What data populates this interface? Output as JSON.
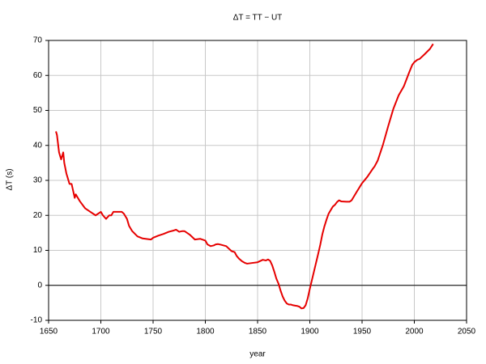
{
  "chart_data": {
    "type": "line",
    "title": "ΔT = TT − UT",
    "xlabel": "year",
    "ylabel": "ΔT (s)",
    "x": [
      1657,
      1658,
      1660,
      1662,
      1664,
      1665,
      1667,
      1670,
      1672,
      1675,
      1676,
      1678,
      1680,
      1685,
      1690,
      1695,
      1700,
      1702,
      1705,
      1708,
      1710,
      1712,
      1715,
      1720,
      1722,
      1725,
      1727,
      1730,
      1735,
      1740,
      1745,
      1748,
      1750,
      1755,
      1760,
      1765,
      1770,
      1772,
      1775,
      1778,
      1780,
      1785,
      1790,
      1795,
      1800,
      1802,
      1805,
      1808,
      1810,
      1812,
      1815,
      1820,
      1825,
      1828,
      1830,
      1832,
      1835,
      1838,
      1840,
      1845,
      1850,
      1855,
      1858,
      1860,
      1862,
      1864,
      1866,
      1868,
      1870,
      1872,
      1874,
      1876,
      1878,
      1880,
      1882,
      1884,
      1886,
      1888,
      1890,
      1892,
      1894,
      1896,
      1898,
      1900,
      1902,
      1904,
      1906,
      1908,
      1910,
      1912,
      1914,
      1916,
      1918,
      1920,
      1922,
      1924,
      1926,
      1928,
      1930,
      1935,
      1938,
      1940,
      1945,
      1950,
      1955,
      1960,
      1962,
      1965,
      1970,
      1975,
      1980,
      1985,
      1990,
      1995,
      1998,
      2000,
      2003,
      2005,
      2010,
      2015,
      2018
    ],
    "values": [
      44,
      43,
      38,
      36,
      38,
      35,
      32,
      29,
      29,
      25,
      26,
      25,
      24,
      22,
      21,
      20,
      21,
      20,
      19,
      20,
      20,
      21,
      21,
      21,
      20.5,
      19,
      17,
      15.5,
      14,
      13.4,
      13.2,
      13.1,
      13.6,
      14.2,
      14.7,
      15.3,
      15.7,
      15.9,
      15.3,
      15.5,
      15.5,
      14.5,
      13.1,
      13.3,
      12.8,
      11.7,
      11.2,
      11.4,
      11.7,
      11.8,
      11.6,
      11.2,
      9.8,
      9.5,
      8.4,
      7.7,
      6.9,
      6.4,
      6.2,
      6.4,
      6.6,
      7.3,
      7.1,
      7.4,
      7.0,
      5.7,
      3.9,
      1.9,
      0.5,
      -1.5,
      -3.2,
      -4.4,
      -5.2,
      -5.5,
      -5.5,
      -5.7,
      -5.8,
      -5.9,
      -6.1,
      -6.6,
      -6.5,
      -5.7,
      -3.7,
      -1.0,
      1.5,
      4.0,
      6.5,
      9.0,
      11.6,
      14.6,
      16.9,
      18.8,
      20.5,
      21.5,
      22.5,
      23.0,
      23.8,
      24.3,
      24.0,
      23.9,
      23.9,
      24.3,
      26.8,
      29.2,
      31.0,
      33.2,
      34.0,
      35.7,
      40.2,
      45.5,
      50.5,
      54.3,
      56.9,
      60.8,
      63.0,
      63.8,
      64.5,
      64.7,
      66.1,
      67.6,
      69.0
    ],
    "color": "#e60000",
    "xlim": [
      1650,
      2050
    ],
    "xticks": [
      1650,
      1700,
      1750,
      1800,
      1850,
      1900,
      1950,
      2000,
      2050
    ],
    "ylim": [
      -10,
      70
    ],
    "yticks": [
      -10,
      0,
      10,
      20,
      30,
      40,
      50,
      60,
      70
    ],
    "grid": true
  }
}
